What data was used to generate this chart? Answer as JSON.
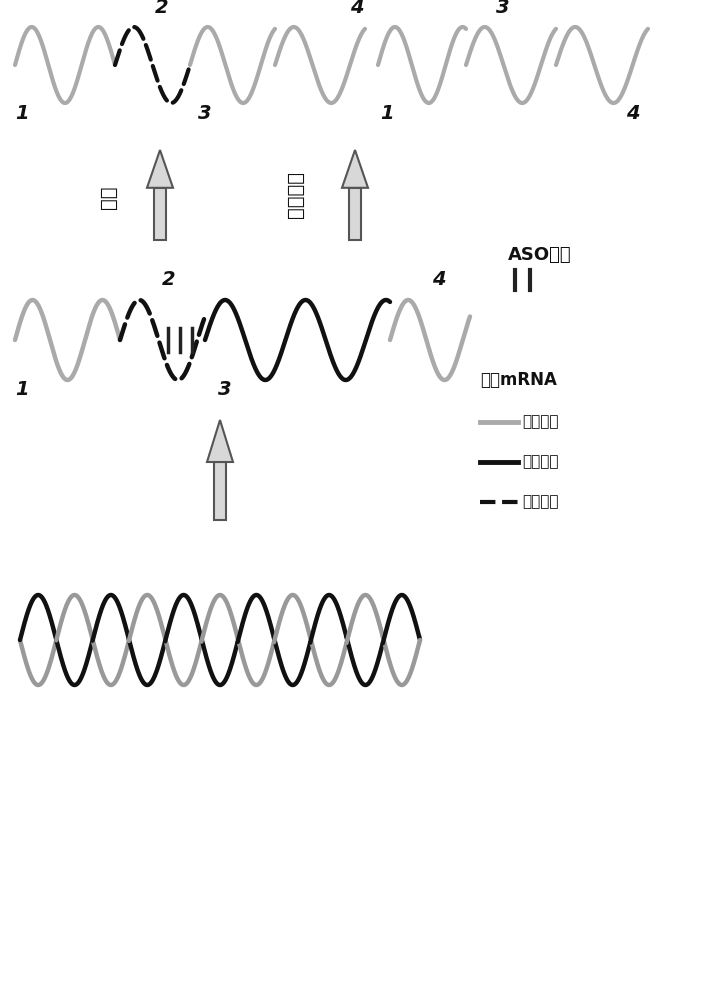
{
  "bg_color": "#ffffff",
  "label_normal": "正常",
  "label_skip": "剪接转据",
  "label_aso": "ASO探针",
  "legend_premrna": "前体mRNA",
  "legend_exon": "：外显子",
  "legend_intron": "：内含子",
  "legend_target": "：靶位点",
  "exon_color": "#aaaaaa",
  "intron_color": "#111111",
  "target_color": "#111111",
  "helix1_color": "#111111",
  "helix2_color": "#999999"
}
